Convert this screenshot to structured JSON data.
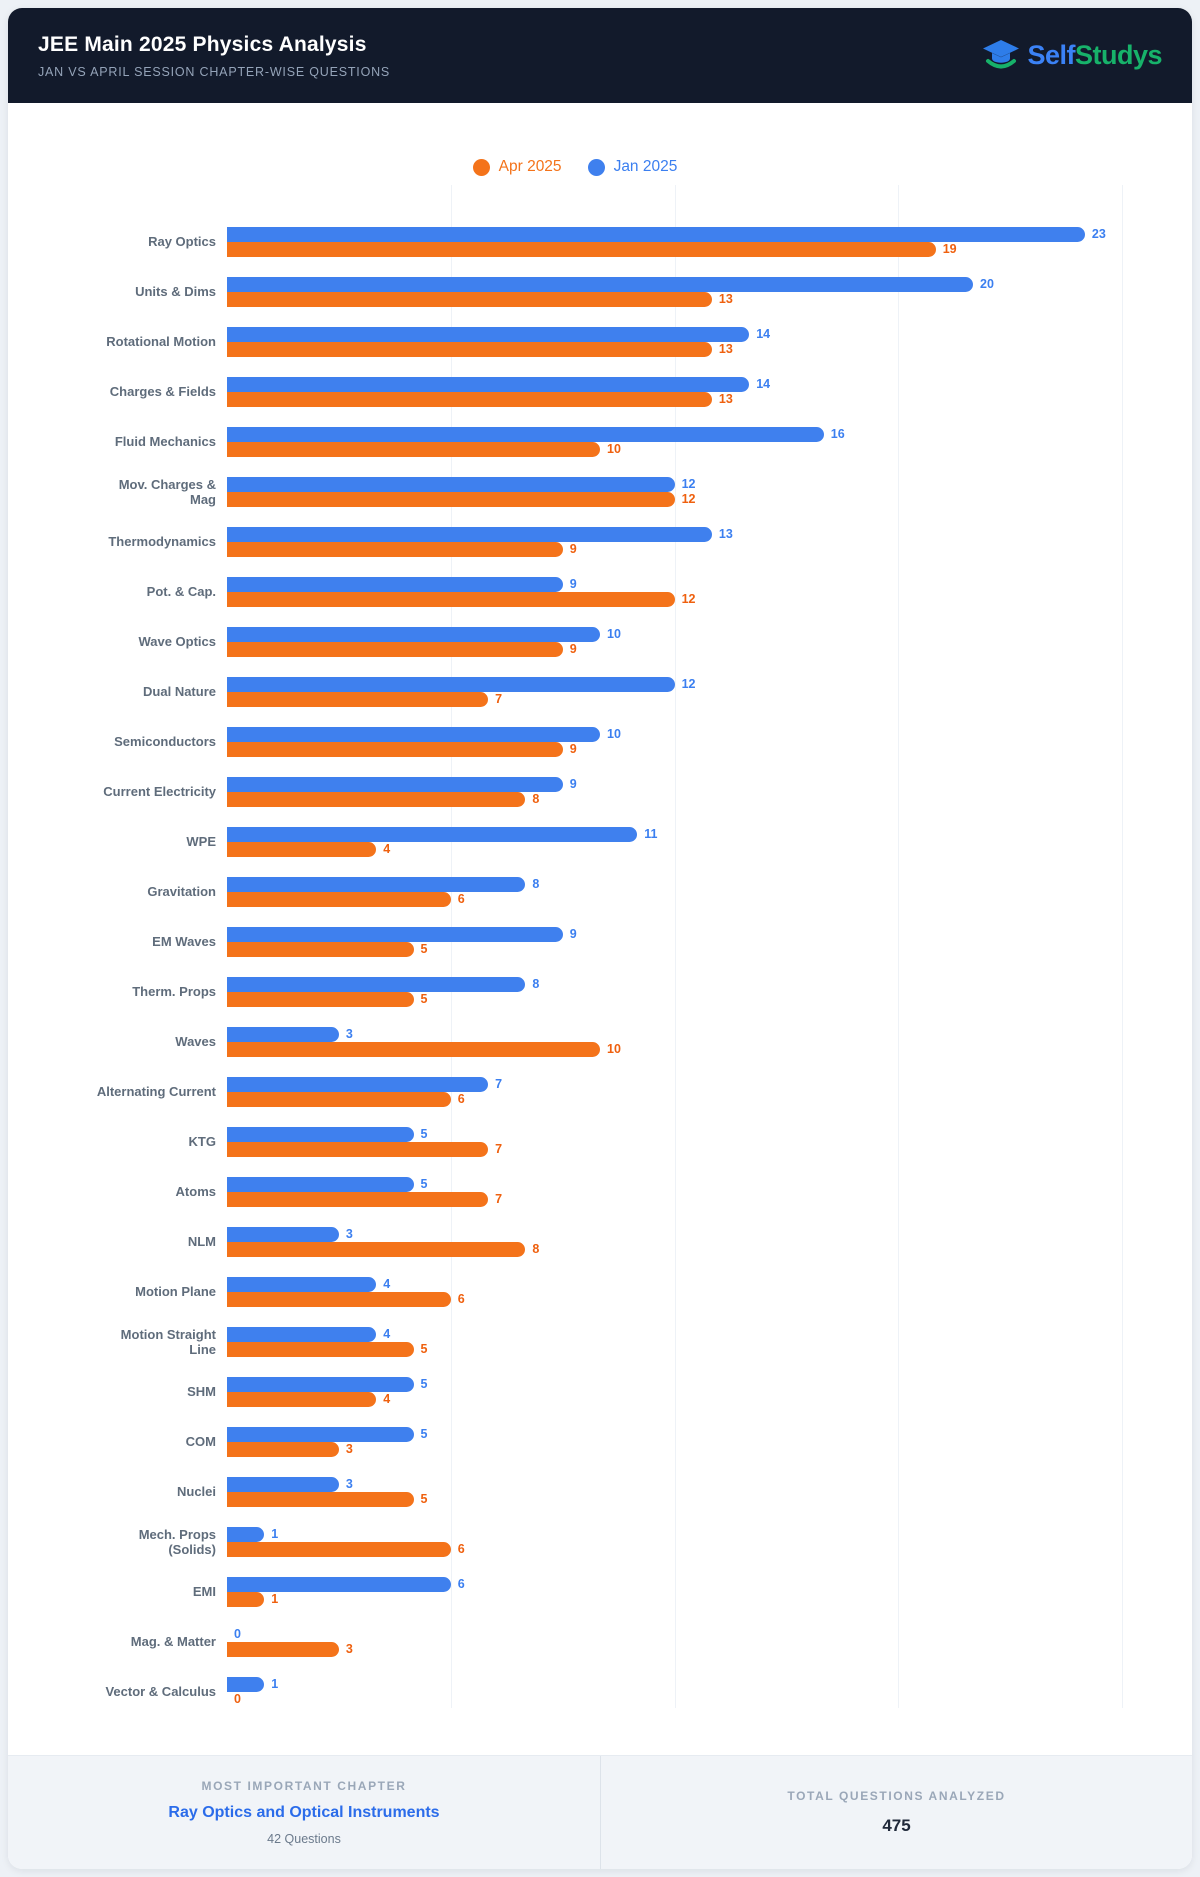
{
  "header": {
    "title": "JEE Main 2025 Physics Analysis",
    "subtitle": "JAN VS APRIL SESSION CHAPTER-WISE QUESTIONS",
    "brand": {
      "part1": "Self",
      "part2": "Studys"
    }
  },
  "legend": {
    "apr": "Apr 2025",
    "jan": "Jan 2025"
  },
  "chart_data": {
    "type": "bar",
    "orientation": "horizontal",
    "title": "JEE Main 2025 Physics Analysis",
    "subtitle": "Jan vs April session chapter-wise questions",
    "categories": [
      "Ray Optics",
      "Units & Dims",
      "Rotational Motion",
      "Charges & Fields",
      "Fluid Mechanics",
      "Mov. Charges &\nMag",
      "Thermodynamics",
      "Pot. & Cap.",
      "Wave Optics",
      "Dual Nature",
      "Semiconductors",
      "Current Electricity",
      "WPE",
      "Gravitation",
      "EM Waves",
      "Therm. Props",
      "Waves",
      "Alternating Current",
      "KTG",
      "Atoms",
      "NLM",
      "Motion Plane",
      "Motion Straight\nLine",
      "SHM",
      "COM",
      "Nuclei",
      "Mech. Props\n(Solids)",
      "EMI",
      "Mag. & Matter",
      "Vector & Calculus"
    ],
    "series": [
      {
        "name": "Jan 2025",
        "color": "#3f80ee",
        "values": [
          23,
          20,
          14,
          14,
          16,
          12,
          13,
          9,
          10,
          12,
          10,
          9,
          11,
          8,
          9,
          8,
          3,
          7,
          5,
          5,
          3,
          4,
          4,
          5,
          5,
          3,
          1,
          6,
          0,
          1
        ]
      },
      {
        "name": "Apr 2025",
        "color": "#f4731a",
        "values": [
          19,
          13,
          13,
          13,
          10,
          12,
          9,
          12,
          9,
          7,
          9,
          8,
          4,
          6,
          5,
          5,
          10,
          6,
          7,
          7,
          8,
          6,
          5,
          4,
          3,
          5,
          6,
          1,
          3,
          0
        ]
      }
    ],
    "xlim": [
      0,
      25
    ],
    "gridline_step": 6,
    "grid": true,
    "legend_position": "top",
    "value_labels": true
  },
  "footer": {
    "left_label": "MOST IMPORTANT CHAPTER",
    "left_value": "Ray Optics and Optical Instruments",
    "left_sub": "42 Questions",
    "right_label": "TOTAL QUESTIONS ANALYZED",
    "right_value": "475"
  }
}
